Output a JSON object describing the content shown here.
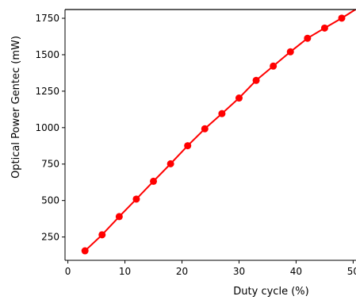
{
  "chart_data": {
    "type": "line",
    "title": "",
    "xlabel": "Duty cycle (%)",
    "ylabel": "Optical Power Gentec (mW)",
    "xlim": [
      -0.5,
      50.5
    ],
    "ylim": [
      90,
      1810
    ],
    "xticks": [
      0,
      10,
      20,
      30,
      40,
      50
    ],
    "xtick_labels": [
      "0",
      "10",
      "20",
      "30",
      "40",
      "50"
    ],
    "yticks": [
      250,
      500,
      750,
      1000,
      1250,
      1500,
      1750
    ],
    "ytick_labels": [
      "250",
      "500",
      "750",
      "1000",
      "1250",
      "1500",
      "1750"
    ],
    "grid": false,
    "legend": "none",
    "series": [
      {
        "color": "#ff0000",
        "marker": "circle",
        "x": [
          3,
          6,
          9,
          12,
          15,
          18,
          21,
          24,
          27,
          30,
          33,
          36,
          39,
          42,
          45,
          48,
          51
        ],
        "y": [
          155,
          265,
          390,
          510,
          632,
          752,
          876,
          992,
          1096,
          1203,
          1324,
          1422,
          1520,
          1613,
          1683,
          1751,
          1825
        ]
      }
    ]
  }
}
